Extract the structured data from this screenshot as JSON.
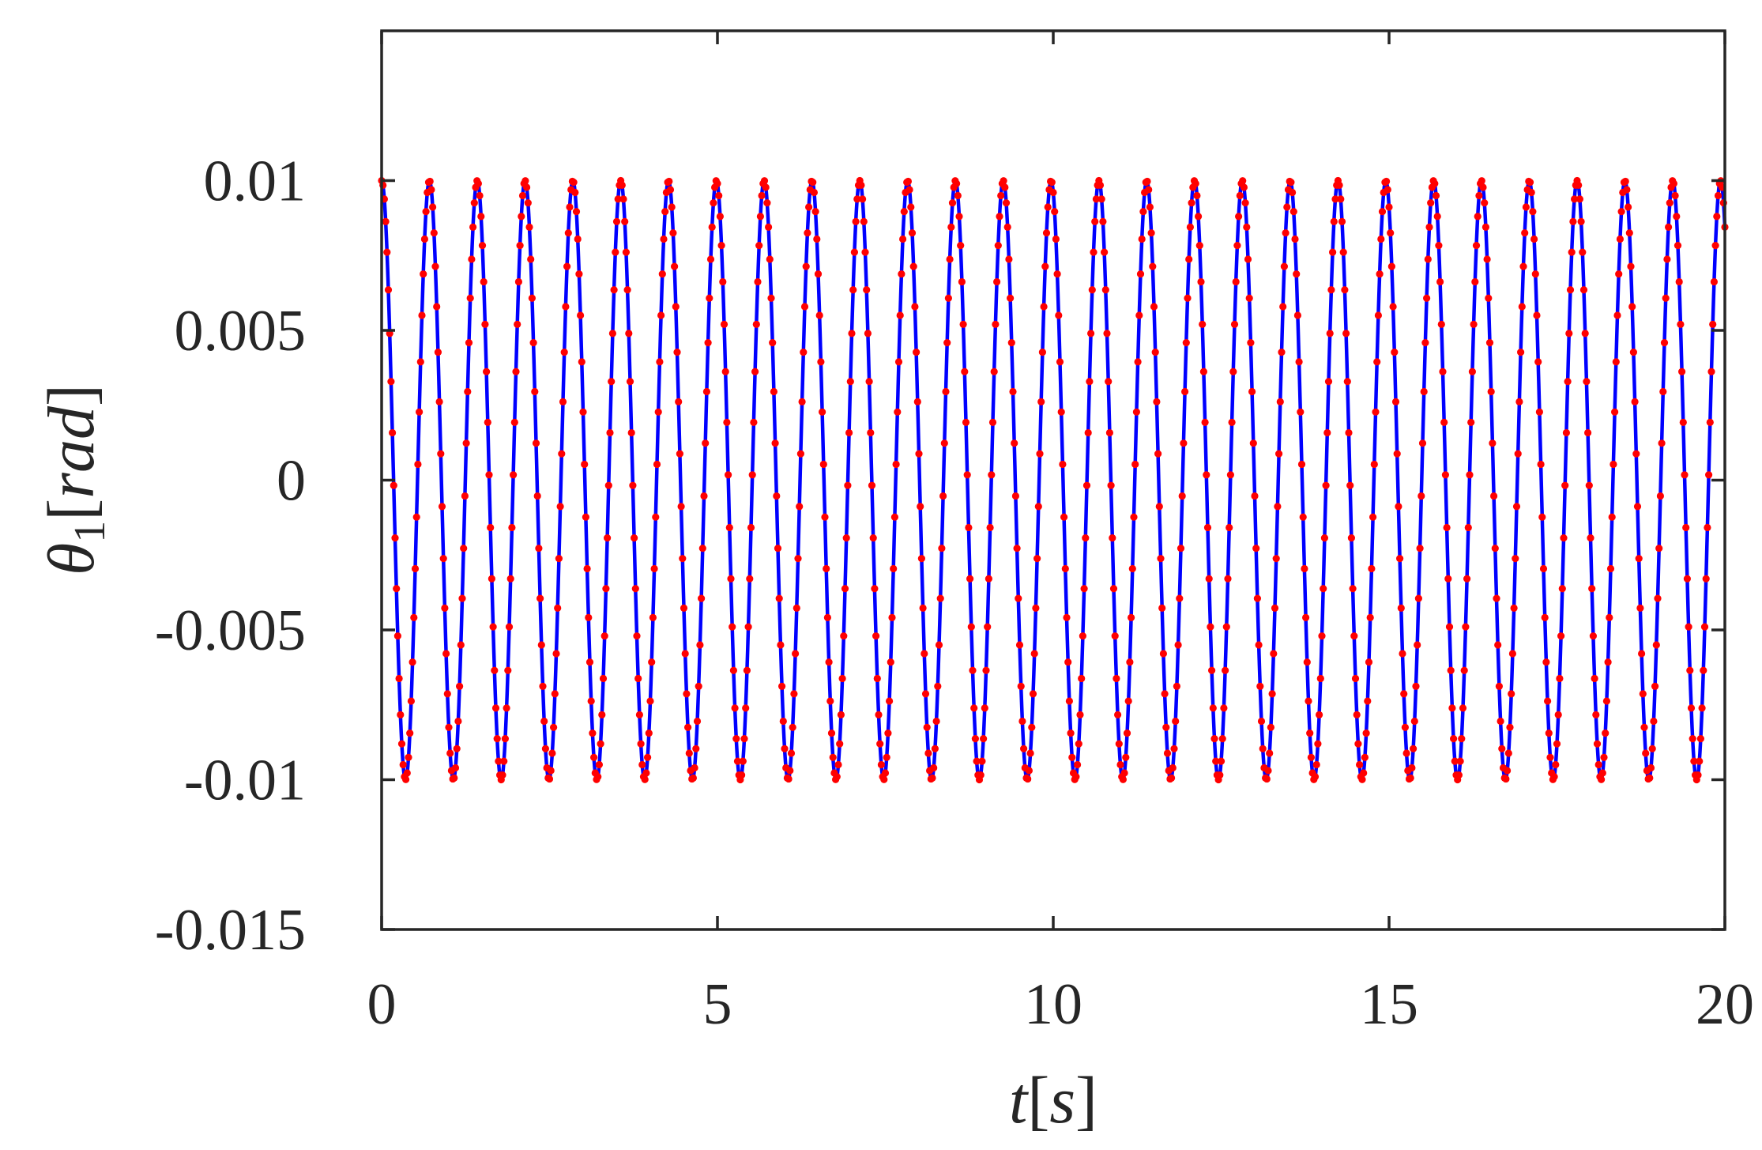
{
  "chart_data": {
    "type": "line",
    "title": "",
    "xlabel": {
      "var": "t",
      "unit": "s"
    },
    "ylabel": {
      "var": "θ",
      "sub": "1",
      "unit": "rad"
    },
    "xlim": [
      0,
      20
    ],
    "ylim": [
      -0.015,
      0.015
    ],
    "x_ticks": [
      0,
      5,
      10,
      15,
      20
    ],
    "x_tick_labels": [
      "0",
      "5",
      "10",
      "15",
      "20"
    ],
    "y_ticks": [
      -0.015,
      -0.01,
      -0.005,
      0,
      0.005,
      0.01
    ],
    "y_tick_labels": [
      "-0.015",
      "-0.01",
      "-0.005",
      "0",
      "0.005",
      "0.01"
    ],
    "grid": false,
    "legend": "none",
    "series": [
      {
        "style": "solid line",
        "color": "#0000ff",
        "function": "0.01*cos(2*pi*t/0.712)",
        "amplitude": 0.01,
        "period": 0.712,
        "t_start": 0,
        "t_end": 20
      },
      {
        "style": "dot markers",
        "color": "#ff0000",
        "function": "0.01*cos(2*pi*t/0.712)",
        "amplitude": 0.01,
        "period": 0.712,
        "sample_step": 0.02,
        "t_start": 0,
        "t_end": 20
      }
    ]
  }
}
